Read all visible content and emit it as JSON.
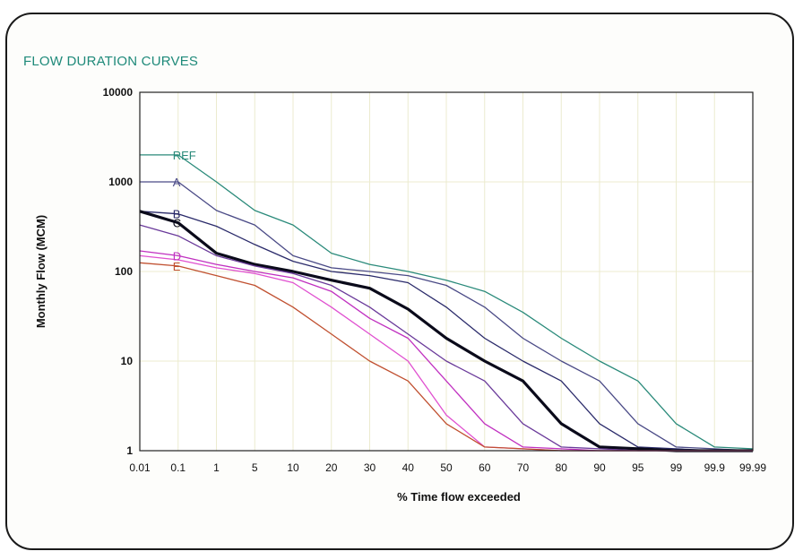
{
  "chart_data": {
    "type": "line",
    "title": "FLOW DURATION CURVES",
    "xlabel": "% Time flow exceeded",
    "ylabel": "Monthly Flow (MCM)",
    "y_scale": "log",
    "ylim": [
      1,
      10000
    ],
    "y_ticks": [
      "1",
      "10",
      "100",
      "1000",
      "10000"
    ],
    "x_scale": "probability",
    "x": [
      "0.01",
      "0.1",
      "1",
      "5",
      "10",
      "20",
      "30",
      "40",
      "50",
      "60",
      "70",
      "80",
      "90",
      "95",
      "99",
      "99.9",
      "99.99"
    ],
    "grid": true,
    "series": [
      {
        "name": "REF",
        "color": "#2a8a7a",
        "values": [
          2000,
          2000,
          1000,
          480,
          330,
          160,
          120,
          100,
          80,
          60,
          35,
          18,
          10,
          6,
          2.0,
          1.1,
          1.05
        ]
      },
      {
        "name": "A",
        "color": "#4a4a86",
        "values": [
          1000,
          1000,
          480,
          330,
          150,
          110,
          100,
          90,
          70,
          40,
          18,
          10,
          6,
          2.0,
          1.1,
          1.05,
          1.0
        ]
      },
      {
        "name": "B",
        "color": "#2a2a6a",
        "values": [
          470,
          440,
          320,
          200,
          130,
          100,
          90,
          75,
          40,
          18,
          10,
          6,
          2.0,
          1.1,
          1.05,
          1.0,
          1.0
        ]
      },
      {
        "name": "C",
        "color": "#0a0a1a",
        "values": [
          470,
          350,
          160,
          120,
          100,
          80,
          65,
          38,
          18,
          10,
          6,
          2.0,
          1.1,
          1.05,
          1.0,
          1.0,
          1.0
        ]
      },
      {
        "name": "",
        "color": "#6a3a9a",
        "values": [
          330,
          250,
          150,
          115,
          95,
          70,
          40,
          20,
          10,
          6,
          2.0,
          1.1,
          1.05,
          1.0,
          1.0,
          1.0,
          1.0
        ]
      },
      {
        "name": "D",
        "color": "#c030c0",
        "values": [
          170,
          150,
          120,
          100,
          85,
          60,
          30,
          18,
          6,
          2.0,
          1.1,
          1.05,
          1.0,
          1.0,
          1.0,
          1.0,
          1.0
        ]
      },
      {
        "name": "",
        "color": "#e050d0",
        "values": [
          150,
          135,
          110,
          95,
          75,
          40,
          20,
          10,
          2.5,
          1.1,
          1.05,
          1.0,
          1.0,
          1.0,
          1.0,
          1.0,
          1.0
        ]
      },
      {
        "name": "E",
        "color": "#c05030",
        "values": [
          125,
          115,
          90,
          70,
          40,
          20,
          10,
          6,
          2.0,
          1.1,
          1.05,
          1.0,
          1.0,
          1.0,
          1.0,
          1.0,
          1.0
        ]
      }
    ],
    "label_x_index": 1
  }
}
